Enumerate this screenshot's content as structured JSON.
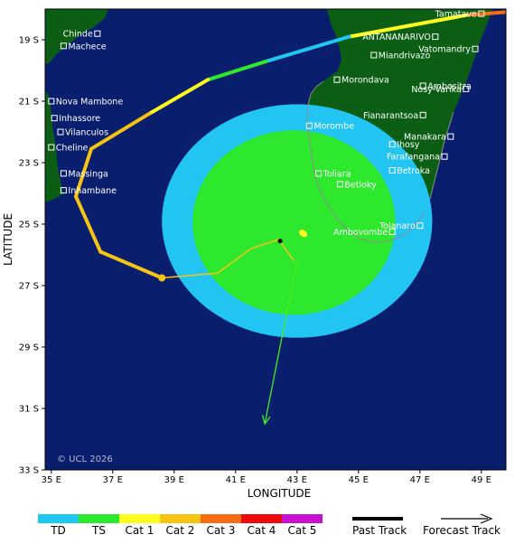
{
  "map": {
    "xlabel": "LONGITUDE",
    "ylabel": "LATITUDE",
    "lon_range": [
      34.8,
      49.8
    ],
    "lat_range": [
      -33.0,
      -18.0
    ],
    "x_ticks": [
      {
        "value": 35,
        "label": "35 E"
      },
      {
        "value": 37,
        "label": "37 E"
      },
      {
        "value": 39,
        "label": "39 E"
      },
      {
        "value": 41,
        "label": "41 E"
      },
      {
        "value": 43,
        "label": "43 E"
      },
      {
        "value": 45,
        "label": "45 E"
      },
      {
        "value": 47,
        "label": "47 E"
      },
      {
        "value": 49,
        "label": "49 E"
      }
    ],
    "y_ticks": [
      {
        "value": -19,
        "label": "19 S"
      },
      {
        "value": -21,
        "label": "21 S"
      },
      {
        "value": -23,
        "label": "23 S"
      },
      {
        "value": -25,
        "label": "25 S"
      },
      {
        "value": -27,
        "label": "27 S"
      },
      {
        "value": -29,
        "label": "29 S"
      },
      {
        "value": -31,
        "label": "31 S"
      },
      {
        "value": -33,
        "label": "33 S"
      }
    ],
    "copyright": "© UCL 2026",
    "colors": {
      "ocean": "#0a1e6e",
      "land": "#0b5e14",
      "wind_ts": "#2ee82e",
      "wind_td": "#22c4f2",
      "coast": "#8c8c8c",
      "past_track": "#000000",
      "forecast_track": "#44ee22"
    },
    "places": [
      {
        "name": "Chinde",
        "lon": 36.5,
        "lat": -18.8,
        "side": "left"
      },
      {
        "name": "Machece",
        "lon": 35.4,
        "lat": -19.2,
        "side": "right"
      },
      {
        "name": "Nova Mambone",
        "lon": 35.0,
        "lat": -21.0,
        "side": "right"
      },
      {
        "name": "Inhassore",
        "lon": 35.1,
        "lat": -21.55,
        "side": "right"
      },
      {
        "name": "Vilanculos",
        "lon": 35.3,
        "lat": -22.0,
        "side": "right"
      },
      {
        "name": "Cheline",
        "lon": 35.0,
        "lat": -22.5,
        "side": "right"
      },
      {
        "name": "Massinga",
        "lon": 35.4,
        "lat": -23.35,
        "side": "right"
      },
      {
        "name": "Inhambane",
        "lon": 35.4,
        "lat": -23.9,
        "side": "right"
      },
      {
        "name": "Tamatave",
        "lon": 49.0,
        "lat": -18.15,
        "side": "left"
      },
      {
        "name": "ANTANANARIVO",
        "lon": 47.5,
        "lat": -18.9,
        "side": "left"
      },
      {
        "name": "Vatomandry",
        "lon": 48.8,
        "lat": -19.3,
        "side": "left"
      },
      {
        "name": "Miandrivazo",
        "lon": 45.5,
        "lat": -19.5,
        "side": "right"
      },
      {
        "name": "Morondava",
        "lon": 44.3,
        "lat": -20.3,
        "side": "right"
      },
      {
        "name": "Ambositra",
        "lon": 47.1,
        "lat": -20.5,
        "side": "right"
      },
      {
        "name": "Nosy-Varika",
        "lon": 48.5,
        "lat": -20.6,
        "side": "left"
      },
      {
        "name": "Fianarantsoa",
        "lon": 47.1,
        "lat": -21.45,
        "side": "left"
      },
      {
        "name": "Morombe",
        "lon": 43.4,
        "lat": -21.8,
        "side": "right"
      },
      {
        "name": "Manakara",
        "lon": 48.0,
        "lat": -22.15,
        "side": "left"
      },
      {
        "name": "Ihosy",
        "lon": 46.1,
        "lat": -22.4,
        "side": "right"
      },
      {
        "name": "Farafangana",
        "lon": 47.8,
        "lat": -22.8,
        "side": "left"
      },
      {
        "name": "Toliara",
        "lon": 43.7,
        "lat": -23.35,
        "side": "right"
      },
      {
        "name": "Betroka",
        "lon": 46.1,
        "lat": -23.25,
        "side": "right"
      },
      {
        "name": "Betioky",
        "lon": 44.4,
        "lat": -23.7,
        "side": "right"
      },
      {
        "name": "Tolanaro",
        "lon": 47.0,
        "lat": -25.05,
        "side": "left"
      },
      {
        "name": "Ambovombe",
        "lon": 46.1,
        "lat": -25.25,
        "side": "left"
      }
    ],
    "wind_radii": {
      "center": {
        "lon": 43.0,
        "lat": -24.9
      },
      "td_radius_lon": 4.4,
      "td_radius_lat": 3.8,
      "ts_radius_lon": 3.3,
      "ts_radius_lat": 3.0
    },
    "past_track": [
      {
        "lon": 49.8,
        "lat": -18.1,
        "cat": "cat3"
      },
      {
        "lon": 48.5,
        "lat": -18.2,
        "cat": "cat1"
      },
      {
        "lon": 44.7,
        "lat": -18.9,
        "cat": "td"
      },
      {
        "lon": 42.0,
        "lat": -19.7,
        "cat": "ts"
      },
      {
        "lon": 40.1,
        "lat": -20.3,
        "cat": "cat1"
      },
      {
        "lon": 38.2,
        "lat": -21.4,
        "cat": "cat2"
      },
      {
        "lon": 36.3,
        "lat": -22.55,
        "cat": "cat2"
      },
      {
        "lon": 35.8,
        "lat": -24.1,
        "cat": "cat2"
      },
      {
        "lon": 36.6,
        "lat": -25.9,
        "cat": "cat2"
      },
      {
        "lon": 38.6,
        "lat": -26.75,
        "cat": "cat2"
      }
    ],
    "recent_track": [
      {
        "lon": 38.6,
        "lat": -26.75
      },
      {
        "lon": 40.4,
        "lat": -26.6
      },
      {
        "lon": 41.5,
        "lat": -25.8
      },
      {
        "lon": 42.4,
        "lat": -25.5
      },
      {
        "lon": 42.9,
        "lat": -26.2
      }
    ],
    "current_position": {
      "lon": 42.45,
      "lat": -25.55
    },
    "forecast_marker": {
      "lon": 43.2,
      "lat": -25.3
    },
    "forecast_track": [
      {
        "lon": 43.0,
        "lat": -26.2
      },
      {
        "lon": 41.95,
        "lat": -31.5
      }
    ]
  },
  "legend": {
    "categories": [
      {
        "label": "TD",
        "color": "#1ec8f0"
      },
      {
        "label": "TS",
        "color": "#2ee82e"
      },
      {
        "label": "Cat 1",
        "color": "#ffff1e"
      },
      {
        "label": "Cat 2",
        "color": "#f8c414"
      },
      {
        "label": "Cat 3",
        "color": "#f56e14"
      },
      {
        "label": "Cat 4",
        "color": "#ee0a0a"
      },
      {
        "label": "Cat 5",
        "color": "#c810d2"
      }
    ],
    "past_track_label": "Past Track",
    "forecast_track_label": "Forecast Track"
  }
}
